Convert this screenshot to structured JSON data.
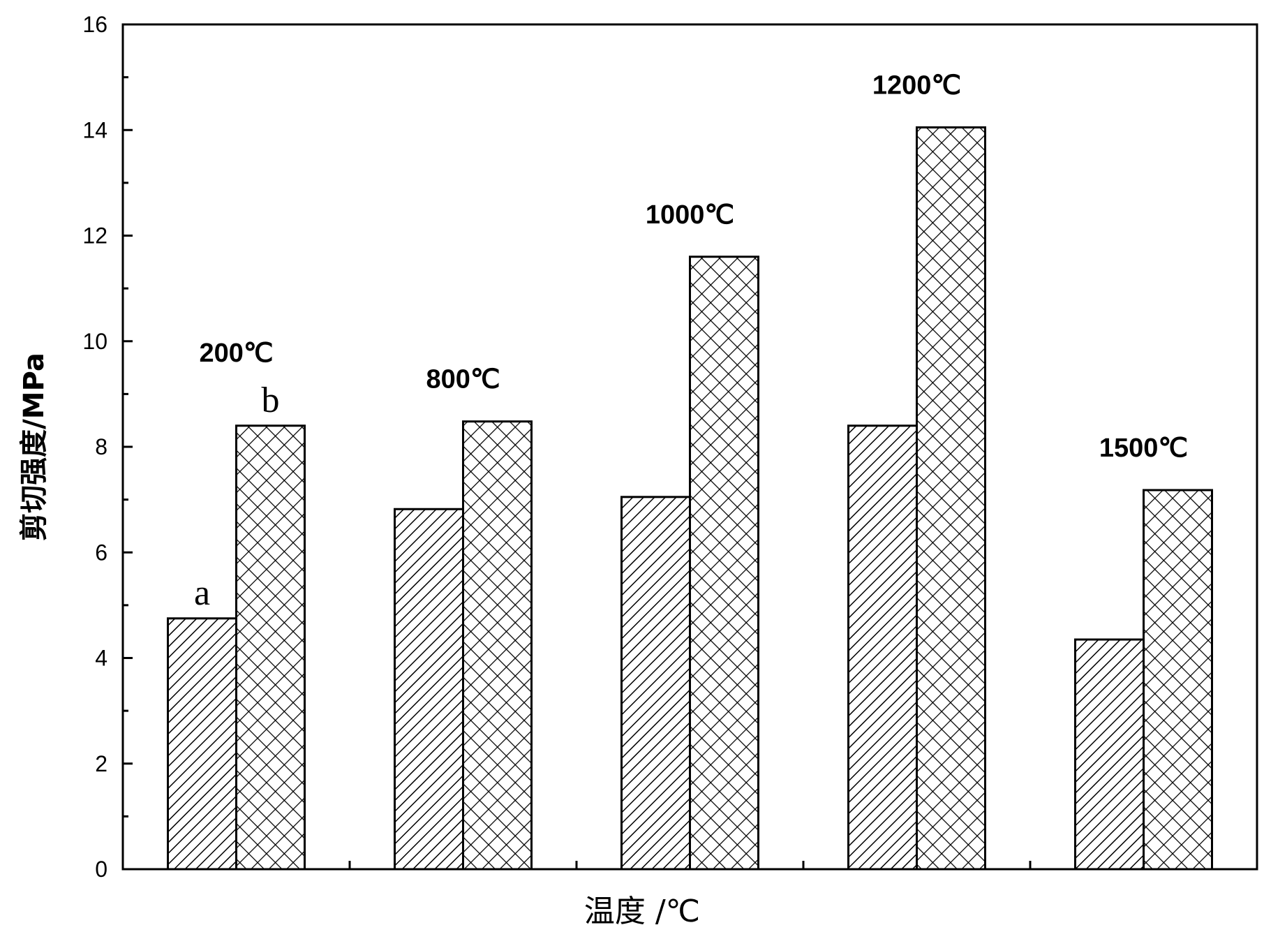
{
  "chart_data": {
    "type": "bar",
    "title": "",
    "xlabel": "温度 /℃",
    "ylabel": "剪切强度/MPa",
    "ylim": [
      0,
      16
    ],
    "yticks": [
      "0",
      "2",
      "4",
      "6",
      "8",
      "10",
      "12",
      "14",
      "16"
    ],
    "grid": false,
    "categories": [
      "200℃",
      "800℃",
      "1000℃",
      "1200℃",
      "1500℃"
    ],
    "series": [
      {
        "name": "a",
        "pattern": "diagonal-hatch",
        "values": [
          4.75,
          6.82,
          7.05,
          8.4,
          4.35
        ]
      },
      {
        "name": "b",
        "pattern": "cross-hatch",
        "values": [
          8.4,
          8.48,
          11.6,
          14.05,
          7.18
        ]
      }
    ]
  }
}
